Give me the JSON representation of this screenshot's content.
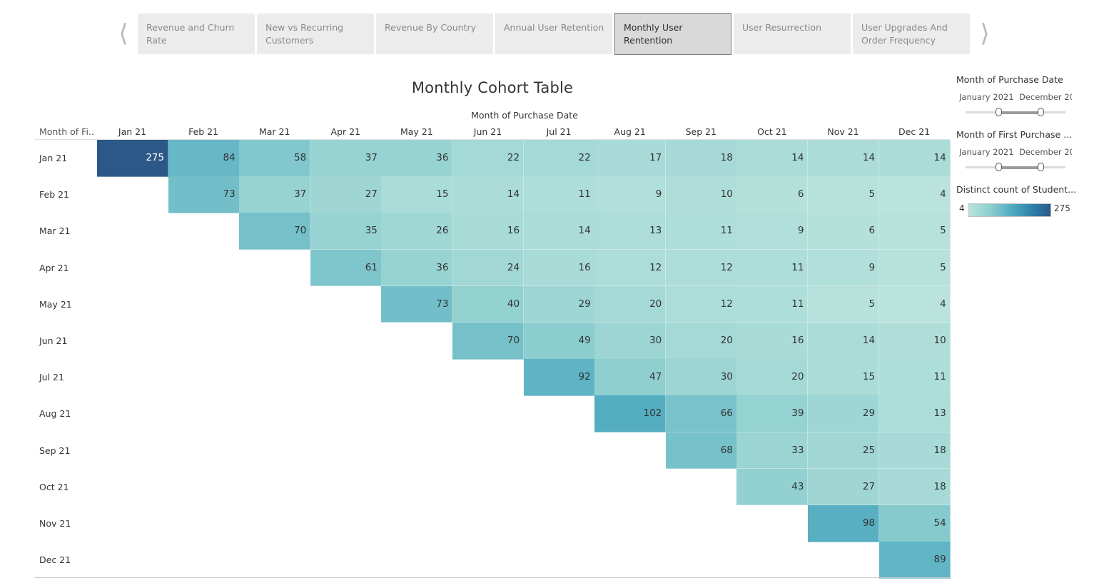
{
  "tabs": [
    {
      "label": "Revenue and Churn Rate",
      "active": false
    },
    {
      "label": "New vs Recurring Customers",
      "active": false
    },
    {
      "label": "Revenue By Country",
      "active": false
    },
    {
      "label": "Annual User Retention",
      "active": false
    },
    {
      "label": "Monthly User Rentention",
      "active": true
    },
    {
      "label": "User Resurrection",
      "active": false
    },
    {
      "label": "User Upgrades And Order Frequency",
      "active": false
    }
  ],
  "nav": {
    "prev_icon": "chevron-left-icon",
    "next_icon": "chevron-right-icon"
  },
  "filters": [
    {
      "title": "Month of Purchase Date",
      "start": "January 2021",
      "end": "December 20",
      "selected_fraction": [
        0.33,
        0.75
      ]
    },
    {
      "title": "Month of First Purchase ...",
      "start": "January 2021",
      "end": "December 20",
      "selected_fraction": [
        0.33,
        0.75
      ]
    }
  ],
  "legend": {
    "title": "Distinct count of Student...",
    "min_label": "4",
    "max_label": "275",
    "min": 4,
    "max": 275,
    "colors": [
      "#b9e3dc",
      "#8fcfd0",
      "#4ba8bf",
      "#2b7da6",
      "#2c5887"
    ]
  },
  "chart_data": {
    "type": "heatmap",
    "title": "Monthly Cohort Table",
    "xlabel": "Month of Purchase Date",
    "ylabel": "Month of Fi..",
    "columns": [
      "Jan 21",
      "Feb 21",
      "Mar 21",
      "Apr 21",
      "May 21",
      "Jun 21",
      "Jul 21",
      "Aug 21",
      "Sep 21",
      "Oct 21",
      "Nov 21",
      "Dec 21"
    ],
    "rows": [
      "Jan 21",
      "Feb 21",
      "Mar 21",
      "Apr 21",
      "May 21",
      "Jun 21",
      "Jul 21",
      "Aug 21",
      "Sep 21",
      "Oct 21",
      "Nov 21",
      "Dec 21"
    ],
    "values": [
      [
        275,
        84,
        58,
        37,
        36,
        22,
        22,
        17,
        18,
        14,
        14,
        14
      ],
      [
        null,
        73,
        37,
        27,
        15,
        14,
        11,
        9,
        10,
        6,
        5,
        4
      ],
      [
        null,
        null,
        70,
        35,
        26,
        16,
        14,
        13,
        11,
        9,
        6,
        5
      ],
      [
        null,
        null,
        null,
        61,
        36,
        24,
        16,
        12,
        12,
        11,
        9,
        5
      ],
      [
        null,
        null,
        null,
        null,
        73,
        40,
        29,
        20,
        12,
        11,
        5,
        4
      ],
      [
        null,
        null,
        null,
        null,
        null,
        70,
        49,
        30,
        20,
        16,
        14,
        10
      ],
      [
        null,
        null,
        null,
        null,
        null,
        null,
        92,
        47,
        30,
        20,
        15,
        11
      ],
      [
        null,
        null,
        null,
        null,
        null,
        null,
        null,
        102,
        66,
        39,
        29,
        13
      ],
      [
        null,
        null,
        null,
        null,
        null,
        null,
        null,
        null,
        68,
        33,
        25,
        18
      ],
      [
        null,
        null,
        null,
        null,
        null,
        null,
        null,
        null,
        null,
        43,
        27,
        18
      ],
      [
        null,
        null,
        null,
        null,
        null,
        null,
        null,
        null,
        null,
        null,
        98,
        54
      ],
      [
        null,
        null,
        null,
        null,
        null,
        null,
        null,
        null,
        null,
        null,
        null,
        89
      ]
    ]
  }
}
